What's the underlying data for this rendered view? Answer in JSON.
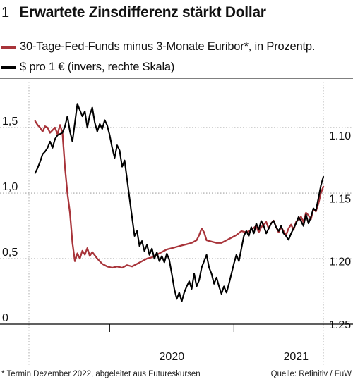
{
  "figure_number": "1",
  "title": "Erwartete Zinsdifferenz stärkt Dollar",
  "legend": [
    {
      "label": "30-Tage-Fed-Funds minus 3-Monate Euribor*, in Prozentp.",
      "color": "#a8343a"
    },
    {
      "label": "$ pro 1 € (invers, rechte Skala)",
      "color": "#000000"
    }
  ],
  "footnote": "* Termin Dezember 2022, abgeleitet aus Futureskursen",
  "source": "Quelle: Refinitiv / FuW",
  "chart_data": {
    "type": "line",
    "x_axis": {
      "tick_labels": [
        "2020",
        "2021"
      ],
      "range": [
        2019.35,
        2021.72
      ]
    },
    "y_left": {
      "tick_labels": [
        "1,5",
        "1,0",
        "0,5",
        "0"
      ],
      "ticks": [
        1.5,
        1.0,
        0.5,
        0.0
      ],
      "range": [
        0.0,
        1.85
      ]
    },
    "y_right": {
      "tick_labels": [
        "1.10",
        "1.15",
        "1.20",
        "1.25"
      ],
      "ticks": [
        1.1,
        1.15,
        1.2,
        1.25
      ],
      "range": [
        1.25,
        1.0575
      ],
      "inverted": true
    },
    "grid": "horizontal dotted",
    "series": [
      {
        "name": "30-Tage-Fed-Funds minus 3-Monate Euribor*, in Prozentp.",
        "axis": "left",
        "color": "#a8343a",
        "points": [
          [
            2019.4,
            1.55
          ],
          [
            2019.42,
            1.52
          ],
          [
            2019.44,
            1.5
          ],
          [
            2019.46,
            1.47
          ],
          [
            2019.48,
            1.51
          ],
          [
            2019.5,
            1.5
          ],
          [
            2019.52,
            1.46
          ],
          [
            2019.54,
            1.48
          ],
          [
            2019.56,
            1.5
          ],
          [
            2019.58,
            1.45
          ],
          [
            2019.6,
            1.52
          ],
          [
            2019.62,
            1.46
          ],
          [
            2019.64,
            1.2
          ],
          [
            2019.66,
            1.0
          ],
          [
            2019.68,
            0.85
          ],
          [
            2019.7,
            0.62
          ],
          [
            2019.72,
            0.48
          ],
          [
            2019.74,
            0.54
          ],
          [
            2019.76,
            0.5
          ],
          [
            2019.78,
            0.56
          ],
          [
            2019.8,
            0.53
          ],
          [
            2019.82,
            0.58
          ],
          [
            2019.84,
            0.52
          ],
          [
            2019.86,
            0.55
          ],
          [
            2019.9,
            0.5
          ],
          [
            2019.94,
            0.46
          ],
          [
            2019.98,
            0.44
          ],
          [
            2020.02,
            0.43
          ],
          [
            2020.06,
            0.44
          ],
          [
            2020.1,
            0.43
          ],
          [
            2020.14,
            0.45
          ],
          [
            2020.18,
            0.44
          ],
          [
            2020.22,
            0.46
          ],
          [
            2020.26,
            0.48
          ],
          [
            2020.3,
            0.5
          ],
          [
            2020.34,
            0.51
          ],
          [
            2020.38,
            0.53
          ],
          [
            2020.42,
            0.55
          ],
          [
            2020.46,
            0.57
          ],
          [
            2020.5,
            0.58
          ],
          [
            2020.54,
            0.59
          ],
          [
            2020.58,
            0.6
          ],
          [
            2020.62,
            0.61
          ],
          [
            2020.66,
            0.62
          ],
          [
            2020.7,
            0.64
          ],
          [
            2020.72,
            0.68
          ],
          [
            2020.74,
            0.73
          ],
          [
            2020.76,
            0.7
          ],
          [
            2020.78,
            0.64
          ],
          [
            2020.82,
            0.63
          ],
          [
            2020.86,
            0.62
          ],
          [
            2020.9,
            0.62
          ],
          [
            2020.94,
            0.64
          ],
          [
            2020.98,
            0.66
          ],
          [
            2021.02,
            0.68
          ],
          [
            2021.06,
            0.71
          ],
          [
            2021.1,
            0.7
          ],
          [
            2021.14,
            0.72
          ],
          [
            2021.18,
            0.75
          ],
          [
            2021.2,
            0.7
          ],
          [
            2021.22,
            0.74
          ],
          [
            2021.24,
            0.76
          ],
          [
            2021.26,
            0.78
          ],
          [
            2021.28,
            0.73
          ],
          [
            2021.3,
            0.77
          ],
          [
            2021.32,
            0.79
          ],
          [
            2021.34,
            0.74
          ],
          [
            2021.36,
            0.7
          ],
          [
            2021.38,
            0.74
          ],
          [
            2021.4,
            0.71
          ],
          [
            2021.42,
            0.68
          ],
          [
            2021.44,
            0.73
          ],
          [
            2021.46,
            0.76
          ],
          [
            2021.48,
            0.72
          ],
          [
            2021.5,
            0.78
          ],
          [
            2021.52,
            0.8
          ],
          [
            2021.54,
            0.82
          ],
          [
            2021.56,
            0.78
          ],
          [
            2021.58,
            0.85
          ],
          [
            2021.6,
            0.83
          ],
          [
            2021.62,
            0.8
          ],
          [
            2021.64,
            0.88
          ],
          [
            2021.66,
            0.86
          ],
          [
            2021.68,
            0.92
          ],
          [
            2021.7,
            1.0
          ],
          [
            2021.72,
            1.05
          ]
        ]
      },
      {
        "name": "$ pro 1 € (invers, rechte Skala)",
        "axis": "right",
        "color": "#000000",
        "points": [
          [
            2019.4,
            1.13
          ],
          [
            2019.42,
            1.126
          ],
          [
            2019.44,
            1.121
          ],
          [
            2019.46,
            1.115
          ],
          [
            2019.48,
            1.113
          ],
          [
            2019.5,
            1.11
          ],
          [
            2019.52,
            1.105
          ],
          [
            2019.54,
            1.11
          ],
          [
            2019.56,
            1.103
          ],
          [
            2019.58,
            1.1
          ],
          [
            2019.6,
            1.099
          ],
          [
            2019.62,
            1.098
          ],
          [
            2019.64,
            1.093
          ],
          [
            2019.66,
            1.085
          ],
          [
            2019.68,
            1.097
          ],
          [
            2019.7,
            1.105
          ],
          [
            2019.72,
            1.09
          ],
          [
            2019.74,
            1.075
          ],
          [
            2019.76,
            1.08
          ],
          [
            2019.78,
            1.085
          ],
          [
            2019.8,
            1.081
          ],
          [
            2019.82,
            1.094
          ],
          [
            2019.84,
            1.084
          ],
          [
            2019.86,
            1.078
          ],
          [
            2019.88,
            1.09
          ],
          [
            2019.9,
            1.097
          ],
          [
            2019.92,
            1.091
          ],
          [
            2019.94,
            1.095
          ],
          [
            2019.96,
            1.088
          ],
          [
            2019.98,
            1.092
          ],
          [
            2020.0,
            1.1
          ],
          [
            2020.02,
            1.11
          ],
          [
            2020.04,
            1.118
          ],
          [
            2020.06,
            1.108
          ],
          [
            2020.08,
            1.112
          ],
          [
            2020.1,
            1.125
          ],
          [
            2020.12,
            1.12
          ],
          [
            2020.14,
            1.135
          ],
          [
            2020.16,
            1.15
          ],
          [
            2020.18,
            1.165
          ],
          [
            2020.2,
            1.18
          ],
          [
            2020.22,
            1.176
          ],
          [
            2020.24,
            1.188
          ],
          [
            2020.26,
            1.184
          ],
          [
            2020.28,
            1.192
          ],
          [
            2020.3,
            1.187
          ],
          [
            2020.32,
            1.195
          ],
          [
            2020.34,
            1.19
          ],
          [
            2020.36,
            1.198
          ],
          [
            2020.38,
            1.193
          ],
          [
            2020.4,
            1.2
          ],
          [
            2020.42,
            1.196
          ],
          [
            2020.44,
            1.201
          ],
          [
            2020.46,
            1.194
          ],
          [
            2020.48,
            1.199
          ],
          [
            2020.5,
            1.21
          ],
          [
            2020.52,
            1.222
          ],
          [
            2020.54,
            1.23
          ],
          [
            2020.56,
            1.225
          ],
          [
            2020.58,
            1.232
          ],
          [
            2020.6,
            1.225
          ],
          [
            2020.62,
            1.22
          ],
          [
            2020.64,
            1.216
          ],
          [
            2020.66,
            1.222
          ],
          [
            2020.68,
            1.21
          ],
          [
            2020.7,
            1.22
          ],
          [
            2020.72,
            1.215
          ],
          [
            2020.74,
            1.205
          ],
          [
            2020.76,
            1.2
          ],
          [
            2020.78,
            1.195
          ],
          [
            2020.8,
            1.205
          ],
          [
            2020.82,
            1.21
          ],
          [
            2020.84,
            1.218
          ],
          [
            2020.86,
            1.213
          ],
          [
            2020.88,
            1.22
          ],
          [
            2020.9,
            1.226
          ],
          [
            2020.92,
            1.22
          ],
          [
            2020.94,
            1.225
          ],
          [
            2020.96,
            1.218
          ],
          [
            2020.98,
            1.21
          ],
          [
            2021.0,
            1.202
          ],
          [
            2021.02,
            1.195
          ],
          [
            2021.04,
            1.2
          ],
          [
            2021.06,
            1.19
          ],
          [
            2021.08,
            1.18
          ],
          [
            2021.1,
            1.176
          ],
          [
            2021.12,
            1.18
          ],
          [
            2021.14,
            1.173
          ],
          [
            2021.16,
            1.178
          ],
          [
            2021.18,
            1.17
          ],
          [
            2021.2,
            1.175
          ],
          [
            2021.22,
            1.168
          ],
          [
            2021.24,
            1.172
          ],
          [
            2021.26,
            1.178
          ],
          [
            2021.28,
            1.174
          ],
          [
            2021.3,
            1.17
          ],
          [
            2021.32,
            1.168
          ],
          [
            2021.34,
            1.173
          ],
          [
            2021.36,
            1.176
          ],
          [
            2021.38,
            1.172
          ],
          [
            2021.4,
            1.178
          ],
          [
            2021.42,
            1.18
          ],
          [
            2021.44,
            1.183
          ],
          [
            2021.46,
            1.178
          ],
          [
            2021.48,
            1.174
          ],
          [
            2021.5,
            1.17
          ],
          [
            2021.52,
            1.165
          ],
          [
            2021.54,
            1.168
          ],
          [
            2021.56,
            1.172
          ],
          [
            2021.58,
            1.163
          ],
          [
            2021.6,
            1.17
          ],
          [
            2021.62,
            1.165
          ],
          [
            2021.64,
            1.158
          ],
          [
            2021.66,
            1.16
          ],
          [
            2021.68,
            1.15
          ],
          [
            2021.7,
            1.14
          ],
          [
            2021.72,
            1.133
          ]
        ]
      }
    ]
  }
}
